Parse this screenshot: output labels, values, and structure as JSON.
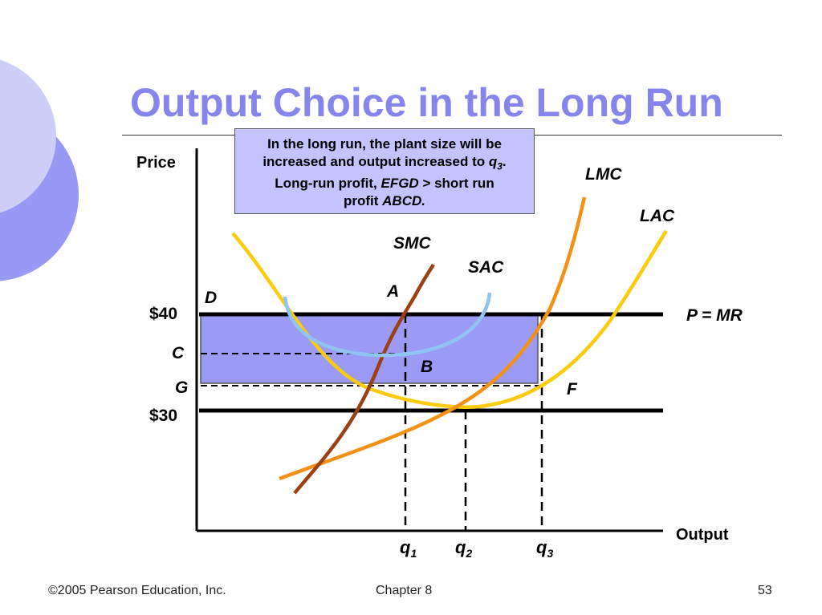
{
  "slide": {
    "title": "Output Choice in the Long Run",
    "note": {
      "line1": "In the long run, the plant size will be",
      "line2_a": "increased and output increased to ",
      "line2_var": "q",
      "line2_sub": "3",
      "line2_end": ".",
      "line3_a": "Long-run profit, ",
      "line3_em": "EFGD",
      "line3_b": " > short run",
      "line4_a": "profit ",
      "line4_em": "ABCD."
    },
    "footer": {
      "copyright": "©2005 Pearson Education, Inc.",
      "chapter": "Chapter 8",
      "page": "53"
    }
  },
  "diagram": {
    "axis_labels": {
      "y": "Price",
      "x": "Output"
    },
    "price_labels": {
      "p40": "$40",
      "p30": "$30"
    },
    "point_labels": {
      "D": "D",
      "C": "C",
      "G": "G",
      "A": "A",
      "B": "B",
      "F": "F"
    },
    "curve_labels": {
      "SMC": "SMC",
      "SAC": "SAC",
      "LMC": "LMC",
      "LAC": "LAC",
      "PMR": "P = MR"
    },
    "quantity_labels": [
      {
        "base": "q",
        "sub": "1"
      },
      {
        "base": "q",
        "sub": "2"
      },
      {
        "base": "q",
        "sub": "3"
      }
    ],
    "colors": {
      "title": "#8585ec",
      "note_fill": "#c3c4ff",
      "profit_rect": "#9b9bf5",
      "lac": "#fccb0e",
      "lmc": "#f39117",
      "smc": "#9c3f12",
      "sac": "#8fc4f3",
      "circle_light": "#cdcff9",
      "circle_dark": "#9899f4"
    }
  }
}
